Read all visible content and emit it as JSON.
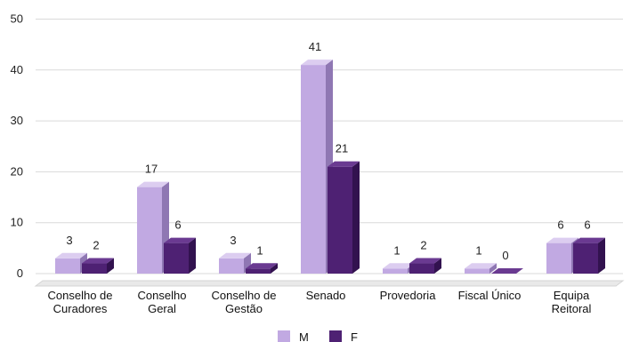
{
  "chart_data": {
    "type": "bar",
    "title": "",
    "xlabel": "",
    "ylabel": "",
    "ylim": [
      0,
      50
    ],
    "yticks": [
      0,
      10,
      20,
      30,
      40,
      50
    ],
    "grid": true,
    "legend": "bottom",
    "categories": [
      [
        "Conselho de",
        "Curadores"
      ],
      [
        "Conselho",
        "Geral"
      ],
      [
        "Conselho de",
        "Gestão"
      ],
      [
        "Senado"
      ],
      [
        "Provedoria"
      ],
      [
        "Fiscal Único"
      ],
      [
        "Equipa",
        "Reitoral"
      ]
    ],
    "series": [
      {
        "name": "M",
        "color": "#c1a9e2",
        "side": "#8f77b3",
        "top": "#dccdf0",
        "values": [
          3,
          17,
          3,
          41,
          1,
          1,
          6
        ]
      },
      {
        "name": "F",
        "color": "#4e2173",
        "side": "#32124f",
        "top": "#6a3a91",
        "values": [
          2,
          6,
          1,
          21,
          2,
          0,
          6
        ]
      }
    ]
  }
}
